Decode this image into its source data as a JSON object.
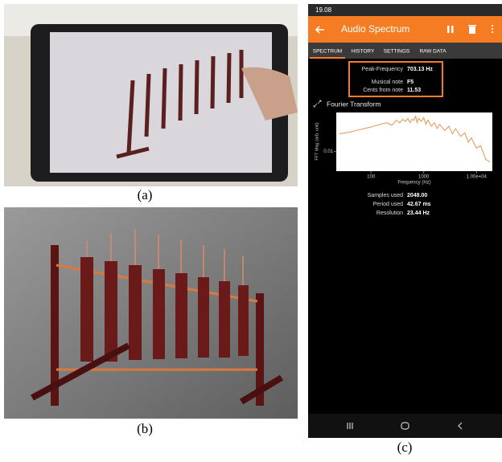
{
  "figure": {
    "captions": [
      "(a)",
      "(b)",
      "(c)"
    ]
  },
  "app": {
    "status_time": "19.08",
    "title": "Audio Spectrum",
    "tabs": [
      "SPECTRUM",
      "HISTORY",
      "SETTINGS",
      "RAW DATA"
    ],
    "peak": [
      [
        "Peak-Frequency",
        "703.13 Hz"
      ],
      [
        "Musical note",
        "F5"
      ],
      [
        "Cents from note",
        "11.53"
      ]
    ],
    "stats": [
      [
        "Samples used",
        "2048.00"
      ],
      [
        "Period used",
        "42.67 ms"
      ],
      [
        "Resolution",
        "23.44 Hz"
      ]
    ]
  },
  "chart_data": {
    "type": "line",
    "title": "Fourier Transform",
    "x_label": "Frequency (Hz)",
    "y_label": "FFT Mag (arb. unit)",
    "x": [
      25,
      40,
      60,
      100,
      150,
      200,
      250,
      300,
      350,
      400,
      450,
      500,
      550,
      600,
      650,
      703,
      750,
      800,
      900,
      1000,
      1100,
      1200,
      1400,
      1600,
      1800,
      2000,
      2500,
      3000,
      3500,
      4000,
      5000,
      6000,
      7000,
      8000,
      10000,
      12000,
      15000,
      18000
    ],
    "values": [
      0.08,
      0.1,
      0.13,
      0.18,
      0.25,
      0.3,
      0.22,
      0.4,
      0.3,
      0.45,
      0.35,
      0.5,
      0.3,
      0.45,
      0.4,
      0.65,
      0.3,
      0.5,
      0.35,
      0.55,
      0.25,
      0.4,
      0.2,
      0.3,
      0.15,
      0.25,
      0.12,
      0.2,
      0.08,
      0.15,
      0.06,
      0.09,
      0.03,
      0.05,
      0.015,
      0.02,
      0.004,
      0.003
    ],
    "color": "#e8893a",
    "xscale": "log",
    "yscale": "log",
    "xlim": [
      22,
      20000
    ],
    "ylim": [
      0.001,
      1
    ],
    "xticks": [
      100,
      1000,
      {
        "value": 10000,
        "label": "1.00e+04"
      }
    ],
    "yticks": [
      0.01
    ]
  }
}
